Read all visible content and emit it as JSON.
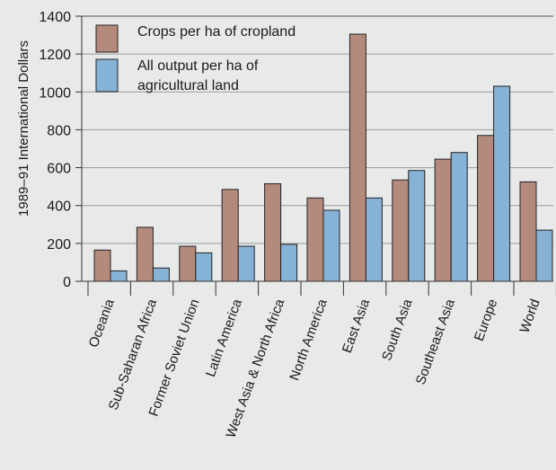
{
  "chart_data": {
    "type": "bar",
    "title": "",
    "xlabel": "",
    "ylabel": "1989–91 International Dollars",
    "ylim": [
      0,
      1400
    ],
    "yticks": [
      0,
      200,
      400,
      600,
      800,
      1000,
      1200,
      1400
    ],
    "grid": "horizontal",
    "legend_position": "top-left",
    "categories": [
      "Oceania",
      "Sub-Saharan Africa",
      "Former Soviet Union",
      "Latin America",
      "West Asia & North Africa",
      "North America",
      "East Asia",
      "South Asia",
      "Southeast Asia",
      "Europe",
      "World"
    ],
    "series": [
      {
        "name": "Crops per ha of cropland",
        "color": "#b48a7d",
        "values": [
          165,
          285,
          185,
          485,
          515,
          440,
          1305,
          535,
          645,
          770,
          525
        ]
      },
      {
        "name": "All output per ha of agricultural land",
        "color": "#86b2d6",
        "values": [
          55,
          70,
          150,
          185,
          195,
          375,
          440,
          585,
          680,
          1030,
          270
        ]
      }
    ],
    "legend_lines": [
      [
        "Crops per ha of cropland"
      ],
      [
        "All output per ha of",
        "agricultural land"
      ]
    ]
  }
}
